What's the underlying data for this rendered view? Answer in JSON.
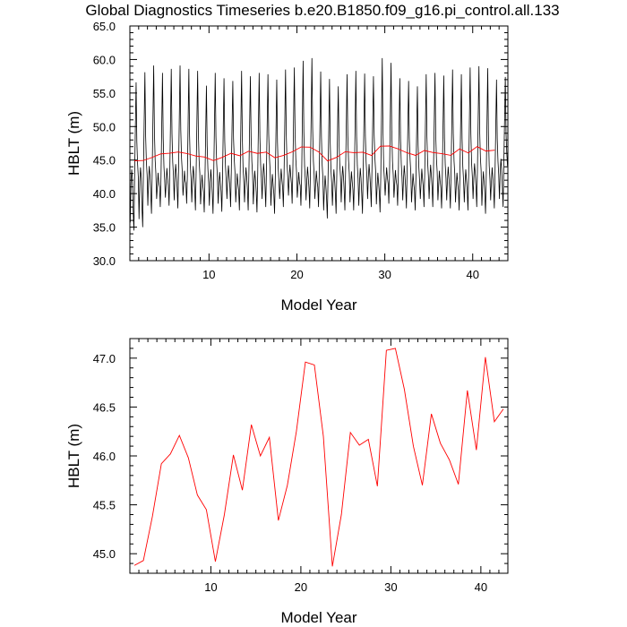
{
  "title": "Global Diagnostics Timeseries b.e20.B1850.f09_g16.pi_control.all.133",
  "chart_data": [
    {
      "type": "line",
      "xlabel": "Model Year",
      "ylabel": "HBLT (m)",
      "xlim": [
        1,
        44
      ],
      "ylim": [
        30,
        65
      ],
      "xticks": [
        10,
        20,
        30,
        40
      ],
      "yticks": [
        "30.0",
        "35.0",
        "40.0",
        "45.0",
        "50.0",
        "55.0",
        "60.0",
        "65.0"
      ],
      "series": [
        {
          "color": "#000000",
          "kind": "monthly",
          "annual_max": [
            56.6,
            58.1,
            59.1,
            58.0,
            58.6,
            59.1,
            58.6,
            58.3,
            56.1,
            58.0,
            57.2,
            56.8,
            58.3,
            57.5,
            58.0,
            57.8,
            57.0,
            58.5,
            58.8,
            59.8,
            60.2,
            58.2,
            57.1,
            56.0,
            57.8,
            58.3,
            57.9,
            57.5,
            60.2,
            59.5,
            57.2,
            56.8,
            56.0,
            57.8,
            58.0,
            57.6,
            58.5,
            57.8,
            58.8,
            59.0,
            58.7,
            57.0,
            57.4
          ],
          "annual_min": [
            34.5,
            35.0,
            37.0,
            38.0,
            38.2,
            37.8,
            38.5,
            37.5,
            37.2,
            37.0,
            37.3,
            38.0,
            37.5,
            37.5,
            37.2,
            38.0,
            37.0,
            38.0,
            38.5,
            38.2,
            37.8,
            38.0,
            36.3,
            37.0,
            37.5,
            37.5,
            37.0,
            38.0,
            37.2,
            38.5,
            38.2,
            37.8,
            37.5,
            38.0,
            38.0,
            37.8,
            37.8,
            37.5,
            37.5,
            38.0,
            37.0,
            37.8,
            38.0
          ],
          "annual_mid": [
            43.0,
            43.3,
            43.5,
            42.5,
            43.2,
            43.8,
            42.8,
            43.5,
            42.2,
            43.0,
            42.6,
            43.6,
            42.4,
            43.3,
            42.8,
            43.9,
            42.3,
            43.1,
            43.7,
            42.6,
            43.4,
            42.8,
            42.1,
            43.0,
            43.5,
            42.7,
            43.2,
            43.8,
            42.5,
            43.3,
            42.9,
            43.6,
            42.4,
            43.1,
            43.7,
            42.8,
            43.4,
            42.5,
            43.0,
            43.9,
            42.7,
            43.3,
            44.6
          ]
        },
        {
          "color": "#ff0000",
          "kind": "annual",
          "values": [
            44.88,
            44.93,
            45.38,
            45.92,
            46.02,
            46.21,
            45.98,
            45.6,
            45.45,
            44.92,
            45.4,
            46.01,
            45.65,
            46.32,
            46.0,
            46.19,
            45.34,
            45.7,
            46.25,
            46.96,
            46.93,
            46.2,
            44.87,
            45.4,
            46.24,
            46.11,
            46.17,
            45.69,
            47.08,
            47.1,
            46.68,
            46.1,
            45.7,
            46.43,
            46.13,
            45.96,
            45.71,
            46.67,
            46.06,
            47.01,
            46.35,
            46.48
          ]
        }
      ]
    },
    {
      "type": "line",
      "xlabel": "Model Year",
      "ylabel": "HBLT (m)",
      "xlim": [
        1,
        43
      ],
      "ylim": [
        44.8,
        47.2
      ],
      "xticks": [
        10,
        20,
        30,
        40
      ],
      "yticks": [
        "45.0",
        "45.5",
        "46.0",
        "46.5",
        "47.0"
      ],
      "series": [
        {
          "color": "#ff0000",
          "x": [
            1.5,
            2.5,
            3.5,
            4.5,
            5.5,
            6.5,
            7.5,
            8.5,
            9.5,
            10.5,
            11.5,
            12.5,
            13.5,
            14.5,
            15.5,
            16.5,
            17.5,
            18.5,
            19.5,
            20.5,
            21.5,
            22.5,
            23.5,
            24.5,
            25.5,
            26.5,
            27.5,
            28.5,
            29.5,
            30.5,
            31.5,
            32.5,
            33.5,
            34.5,
            35.5,
            36.5,
            37.5,
            38.5,
            39.5,
            40.5,
            41.5,
            42.5
          ],
          "values": [
            44.88,
            44.93,
            45.38,
            45.92,
            46.02,
            46.21,
            45.98,
            45.6,
            45.45,
            44.92,
            45.4,
            46.01,
            45.65,
            46.32,
            46.0,
            46.19,
            45.34,
            45.7,
            46.25,
            46.96,
            46.93,
            46.2,
            44.87,
            45.4,
            46.24,
            46.11,
            46.17,
            45.69,
            47.08,
            47.1,
            46.68,
            46.1,
            45.7,
            46.43,
            46.13,
            45.96,
            45.71,
            46.67,
            46.06,
            47.01,
            46.35,
            46.48
          ]
        }
      ]
    }
  ]
}
